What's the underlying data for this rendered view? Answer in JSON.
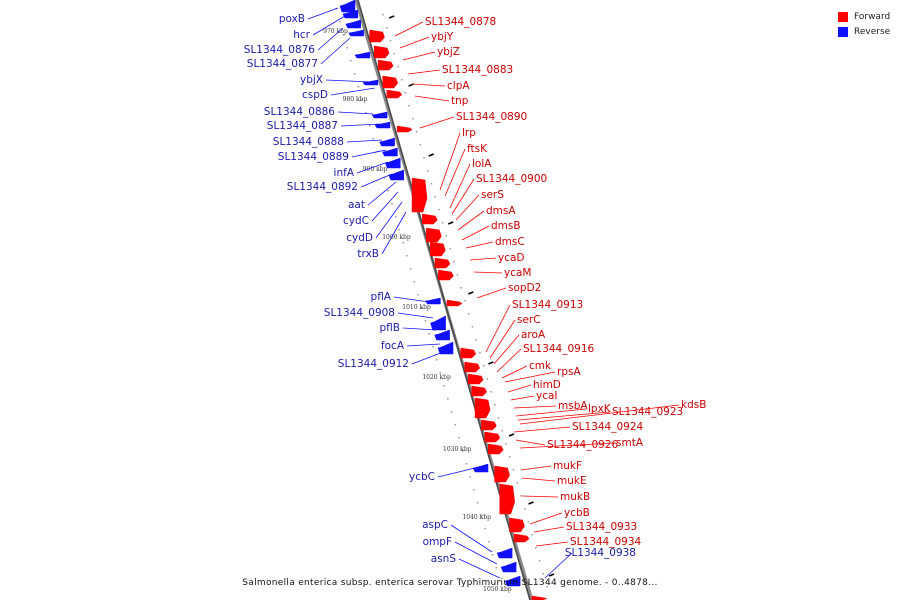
{
  "legend": {
    "forward": {
      "label": "Forward",
      "color": "#ff0000"
    },
    "reverse": {
      "label": "Reverse",
      "color": "#1010ff"
    }
  },
  "caption": "Salmonella enterica subsp. enterica serovar Typhimurium SL1344 genome. - 0..4878...",
  "ticks": [
    "970 kbp",
    "980 kbp",
    "990 kbp",
    "1000 kbp",
    "1010 kbp",
    "1020 kbp",
    "1030 kbp",
    "1040 kbp",
    "1050 kbp"
  ],
  "reverse_genes": [
    "poxB",
    "hcr",
    "SL1344_0876",
    "SL1344_0877",
    "ybjX",
    "cspD",
    "SL1344_0886",
    "SL1344_0887",
    "SL1344_0888",
    "SL1344_0889",
    "infA",
    "SL1344_0892",
    "aat",
    "cydC",
    "cydD",
    "trxB",
    "pflA",
    "SL1344_0908",
    "pflB",
    "focA",
    "SL1344_0912",
    "ycbC",
    "aspC",
    "ompF",
    "asnS",
    "SL1344_0938"
  ],
  "forward_genes": [
    "SL1344_0878",
    "ybjY",
    "ybjZ",
    "SL1344_0883",
    "clpA",
    "tnp",
    "SL1344_0890",
    "lrp",
    "ftsK",
    "lolA",
    "SL1344_0900",
    "serS",
    "dmsA",
    "dmsB",
    "dmsC",
    "ycaD",
    "ycaM",
    "sopD2",
    "SL1344_0913",
    "serC",
    "aroA",
    "SL1344_0916",
    "cmk",
    "rpsA",
    "himD",
    "ycaI",
    "msbA",
    "lpxK",
    "SL1344_0923",
    "kdsB",
    "SL1344_0924",
    "SL1344_0926",
    "smtA",
    "mukF",
    "mukE",
    "mukB",
    "ycbB",
    "SL1344_0933",
    "SL1344_0934"
  ]
}
